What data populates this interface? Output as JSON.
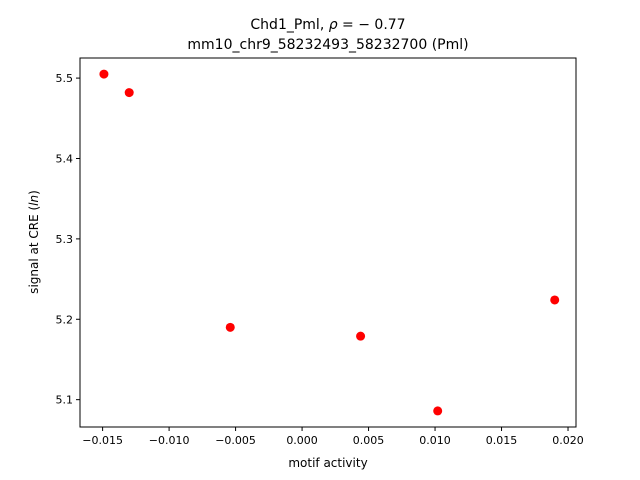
{
  "chart_data": {
    "type": "scatter",
    "title_line1_prefix": "Chd1_Pml, ",
    "title_rho_symbol": "ρ",
    "title_rho_value": " = − 0.77",
    "title_line2": "mm10_chr9_58232493_58232700 (Pml)",
    "xlabel": "motif activity",
    "ylabel_prefix": "signal at CRE (",
    "ylabel_italic": "ln",
    "ylabel_suffix": ")",
    "xlim": [
      -0.0167,
      0.0206
    ],
    "ylim": [
      5.066,
      5.525
    ],
    "xticks": [
      -0.015,
      -0.01,
      -0.005,
      0.0,
      0.005,
      0.01,
      0.015,
      0.02
    ],
    "xtick_labels": [
      "−0.015",
      "−0.010",
      "−0.005",
      "0.000",
      "0.005",
      "0.010",
      "0.015",
      "0.020"
    ],
    "yticks": [
      5.1,
      5.2,
      5.3,
      5.4,
      5.5
    ],
    "ytick_labels": [
      "5.1",
      "5.2",
      "5.3",
      "5.4",
      "5.5"
    ],
    "grid": false,
    "marker_color": "#ff0000",
    "points": [
      {
        "x": -0.0149,
        "y": 5.505
      },
      {
        "x": -0.013,
        "y": 5.482
      },
      {
        "x": -0.0054,
        "y": 5.19
      },
      {
        "x": 0.0044,
        "y": 5.179
      },
      {
        "x": 0.0102,
        "y": 5.086
      },
      {
        "x": 0.019,
        "y": 5.224
      }
    ]
  }
}
